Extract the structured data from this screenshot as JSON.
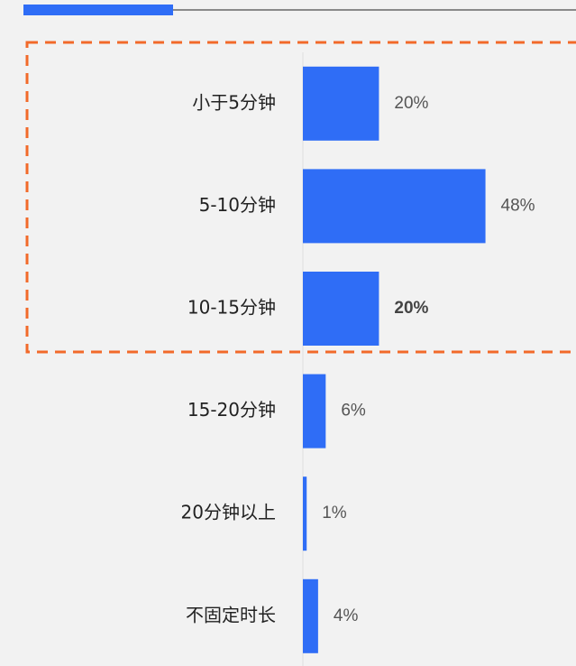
{
  "chart_data": {
    "type": "bar",
    "orientation": "horizontal",
    "categories": [
      "小于5分钟",
      "5-10分钟",
      "10-15分钟",
      "15-20分钟",
      "20分钟以上",
      "不固定时长"
    ],
    "values": [
      20,
      48,
      20,
      6,
      1,
      4
    ],
    "value_labels": [
      "20%",
      "48%",
      "20%",
      "6%",
      "1%",
      "4%"
    ],
    "color": "#2f6df6"
  }
}
